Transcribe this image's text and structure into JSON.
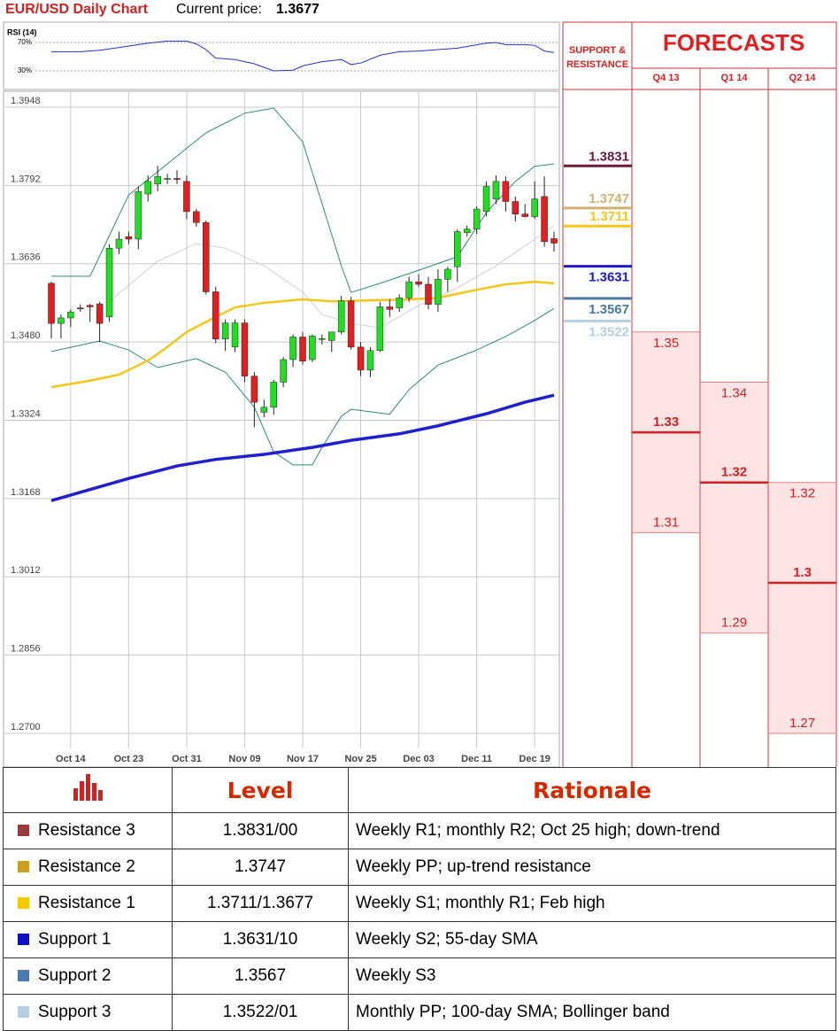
{
  "header": {
    "title": "EUR/USD Daily Chart",
    "price_label": "Current price:",
    "price": 1.3677
  },
  "rsi": {
    "label": "RSI (14)",
    "ylim": [
      0,
      100
    ],
    "yticks": [
      {
        "value": 70,
        "label": "70%"
      },
      {
        "value": 30,
        "label": "30%"
      }
    ],
    "color": "#2233cc",
    "x": [
      0,
      3,
      5,
      6,
      8,
      10,
      12,
      14,
      15,
      16,
      17,
      19,
      21,
      23,
      25,
      26,
      28,
      30,
      31,
      32,
      34,
      36,
      38,
      40,
      42,
      45,
      46,
      47,
      49,
      50,
      51,
      52
    ],
    "values": [
      57,
      57,
      59,
      61,
      65,
      69,
      72,
      72,
      68,
      60,
      48,
      46,
      40,
      30,
      31,
      37,
      43,
      46,
      39,
      41,
      52,
      57,
      58,
      60,
      62,
      69,
      70,
      67,
      67,
      66,
      58,
      56
    ]
  },
  "chart_data": {
    "type": "candlestick",
    "ylim": [
      1.27,
      1.3948
    ],
    "yticks": [
      1.3948,
      1.3792,
      1.3636,
      {
        "value": 1.348,
        "label": "1.3480"
      },
      1.3324,
      1.3168,
      1.3012,
      1.2856,
      {
        "value": 1.27,
        "label": "1.2700"
      }
    ],
    "categories": [
      null,
      null,
      "Oct 14",
      null,
      null,
      null,
      null,
      null,
      "Oct 23",
      null,
      null,
      null,
      null,
      null,
      "Oct 31",
      null,
      null,
      null,
      null,
      null,
      "Nov 09",
      null,
      null,
      null,
      null,
      null,
      "Nov 17",
      null,
      null,
      null,
      null,
      null,
      "Nov 25",
      null,
      null,
      null,
      null,
      null,
      "Dec 03",
      null,
      null,
      null,
      null,
      null,
      "Dec 11",
      null,
      null,
      null,
      null,
      null,
      "Dec 19",
      null,
      null
    ],
    "up_color": "#22dd22",
    "down_color": "#e02020",
    "open": [
      1.3597,
      1.3517,
      1.3528,
      1.3548,
      1.3553,
      1.3556,
      1.353,
      1.3667,
      1.369,
      1.3685,
      1.3775,
      1.3795,
      1.3805,
      1.3806,
      1.38,
      1.374,
      1.3718,
      1.358,
      1.3486,
      1.347,
      1.3518,
      1.3412,
      1.334,
      1.335,
      1.34,
      1.3445,
      1.349,
      1.3445,
      1.3485,
      1.3483,
      1.35,
      1.3562,
      1.347,
      1.3424,
      1.3463,
      1.355,
      1.3548,
      1.3568,
      1.36,
      1.3595,
      1.3555,
      1.3605,
      1.363,
      1.3698,
      1.3705,
      1.374,
      1.3765,
      1.38,
      1.376,
      1.3735,
      1.373,
      1.377,
      1.3686
    ],
    "high": [
      1.36,
      1.3535,
      1.3545,
      1.3555,
      1.3556,
      1.356,
      1.3675,
      1.37,
      1.37,
      1.379,
      1.3812,
      1.3831,
      1.3815,
      1.3822,
      1.3812,
      1.3745,
      1.3722,
      1.359,
      1.3525,
      1.3525,
      1.3525,
      1.342,
      1.3365,
      1.3405,
      1.345,
      1.3495,
      1.35,
      1.3495,
      1.3495,
      1.35,
      1.3572,
      1.357,
      1.348,
      1.347,
      1.356,
      1.3565,
      1.3575,
      1.361,
      1.3615,
      1.361,
      1.3625,
      1.363,
      1.3705,
      1.3712,
      1.375,
      1.38,
      1.3812,
      1.381,
      1.377,
      1.3755,
      1.38,
      1.381,
      1.37
    ],
    "low": [
      1.3487,
      1.3487,
      1.351,
      1.354,
      1.352,
      1.348,
      1.352,
      1.3655,
      1.3675,
      1.3665,
      1.376,
      1.378,
      1.3795,
      1.3795,
      1.3725,
      1.371,
      1.3575,
      1.3478,
      1.3462,
      1.346,
      1.34,
      1.331,
      1.333,
      1.3335,
      1.339,
      1.343,
      1.3435,
      1.344,
      1.3475,
      1.346,
      1.3495,
      1.3465,
      1.3412,
      1.341,
      1.346,
      1.353,
      1.354,
      1.356,
      1.359,
      1.3545,
      1.354,
      1.358,
      1.36,
      1.369,
      1.3695,
      1.373,
      1.3755,
      1.374,
      1.372,
      1.3728,
      1.3725,
      1.367,
      1.366
    ],
    "close": [
      1.3517,
      1.3528,
      1.354,
      1.3546,
      1.355,
      1.3517,
      1.3667,
      1.3685,
      1.3685,
      1.378,
      1.38,
      1.381,
      1.3806,
      1.3804,
      1.374,
      1.3718,
      1.358,
      1.3486,
      1.3518,
      1.3518,
      1.3412,
      1.336,
      1.335,
      1.34,
      1.3445,
      1.349,
      1.3442,
      1.3492,
      1.3487,
      1.35,
      1.3562,
      1.347,
      1.3424,
      1.3463,
      1.355,
      1.3545,
      1.3568,
      1.36,
      1.3595,
      1.3555,
      1.3605,
      1.3625,
      1.37,
      1.3705,
      1.3745,
      1.379,
      1.38,
      1.376,
      1.3735,
      1.373,
      1.3765,
      1.368,
      1.3677
    ],
    "overlays": [
      {
        "color": "#2a8a78",
        "x": [
          0,
          4,
          8,
          12,
          16,
          20,
          23,
          26,
          28,
          30,
          31,
          34,
          38,
          42,
          45,
          48,
          50,
          52
        ],
        "values": [
          1.3611,
          1.3611,
          1.3773,
          1.3835,
          1.3897,
          1.3936,
          1.3946,
          1.3879,
          1.3756,
          1.3632,
          1.3579,
          1.3597,
          1.3623,
          1.365,
          1.3738,
          1.38,
          1.383,
          1.3835
        ]
      },
      {
        "color": "#2a8a78",
        "x": [
          0,
          5,
          8,
          11,
          15,
          18,
          21,
          23,
          25,
          27,
          28,
          30,
          31,
          35,
          37,
          40,
          44,
          47,
          50,
          52
        ],
        "values": [
          1.3461,
          1.3482,
          1.3464,
          1.3429,
          1.3447,
          1.342,
          1.335,
          1.3261,
          1.3235,
          1.3235,
          1.327,
          1.3332,
          1.3346,
          1.3336,
          1.3385,
          1.3434,
          1.3464,
          1.3491,
          1.3523,
          1.3547
        ]
      },
      {
        "color": "#cfcfcf",
        "x": [
          6,
          11,
          15,
          18,
          22,
          26,
          28,
          31,
          34,
          38,
          42,
          46,
          50,
          52
        ],
        "values": [
          1.3561,
          1.3641,
          1.3676,
          1.3667,
          1.3632,
          1.3579,
          1.3535,
          1.3517,
          1.3508,
          1.3553,
          1.3588,
          1.3632,
          1.3685,
          1.3711
        ]
      },
      {
        "color": "#f5c518",
        "x": [
          0,
          4,
          7,
          10,
          12,
          14,
          17,
          19,
          22,
          26,
          29,
          33,
          37,
          40,
          44,
          47,
          50,
          52
        ],
        "values": [
          1.339,
          1.3403,
          1.3415,
          1.3443,
          1.347,
          1.35,
          1.353,
          1.3549,
          1.3558,
          1.3565,
          1.3561,
          1.3563,
          1.3565,
          1.3568,
          1.3584,
          1.3595,
          1.36,
          1.3597
        ]
      },
      {
        "color": "#2020cc",
        "x": [
          0,
          4,
          8,
          13,
          17,
          22,
          27,
          31,
          36,
          40,
          45,
          49,
          52
        ],
        "values": [
          1.3164,
          1.3186,
          1.3208,
          1.3233,
          1.3246,
          1.3256,
          1.327,
          1.3284,
          1.3297,
          1.3313,
          1.3337,
          1.336,
          1.3374
        ]
      }
    ]
  },
  "levels": {
    "heading": [
      "SUPPORT &",
      "RESISTANCE"
    ],
    "values": [
      1.3831,
      1.3747,
      1.3711,
      1.3631,
      1.3567,
      1.3522
    ],
    "colors": [
      "#6b1a3a",
      "#d4b070",
      "#f5c518",
      "#1a1acc",
      "#4a7aa0",
      "#b0d0e0"
    ]
  },
  "forecasts": {
    "title": "FORECASTS",
    "quarters": [
      {
        "label": "Q4 13",
        "high": 1.35,
        "mid": 1.33,
        "low": 1.31
      },
      {
        "label": "Q1 14",
        "high": 1.34,
        "mid": 1.32,
        "low": 1.29
      },
      {
        "label": "Q2 14",
        "high": 1.32,
        "mid": 1.3,
        "low": 1.27
      }
    ]
  },
  "table": {
    "header": [
      "Level",
      "Rationale"
    ],
    "rows": [
      {
        "name": "Resistance 3",
        "color": "#9b3a3a",
        "level": "1.3831/00",
        "rationale": "Weekly R1; monthly R2; Oct 25 high; down-trend"
      },
      {
        "name": "Resistance 2",
        "color": "#c8a020",
        "level": "1.3747",
        "rationale": "Weekly PP; up-trend resistance"
      },
      {
        "name": "Resistance 1",
        "color": "#f5c800",
        "level": "1.3711/1.3677",
        "rationale": "Weekly S1; monthly R1; Feb high"
      },
      {
        "name": "Support 1",
        "color": "#1010c0",
        "level": "1.3631/10",
        "rationale": "Weekly S2; 55-day SMA"
      },
      {
        "name": "Support 2",
        "color": "#4a7ab0",
        "level": "1.3567",
        "rationale": "Weekly S3"
      },
      {
        "name": "Support 3",
        "color": "#b8cce4",
        "level": "1.3522/01",
        "rationale": "Monthly PP; 100-day SMA; Bollinger band"
      }
    ]
  }
}
